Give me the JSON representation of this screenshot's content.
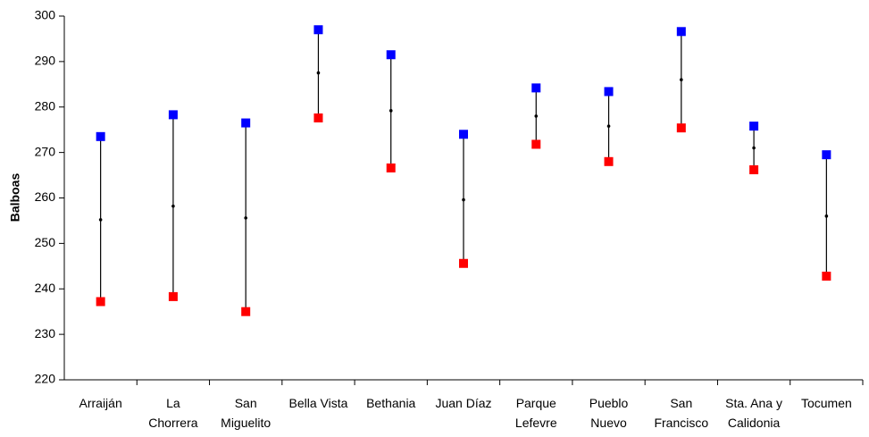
{
  "chart_data": {
    "type": "high-low-mean",
    "y_label": "Balboas",
    "categories": [
      "Arraiján",
      "La\nChorrera",
      "San\nMiguelito",
      "Bella Vista",
      "Bethania",
      "Juan Díaz",
      "Parque\nLefevre",
      "Pueblo\nNuevo",
      "San\nFrancisco",
      "Sta. Ana y\nCalidonia",
      "Tocumen"
    ],
    "series": [
      {
        "color": "#0000ff",
        "marker": "square",
        "values": [
          273.5,
          278.3,
          276.5,
          297,
          291.5,
          274,
          284.2,
          283.4,
          296.6,
          275.8,
          269.5
        ]
      },
      {
        "color": "#ff0000",
        "marker": "square",
        "values": [
          237.2,
          238.3,
          235,
          277.6,
          266.6,
          245.6,
          271.8,
          268,
          275.4,
          266.2,
          242.8
        ]
      },
      {
        "color": "#000000",
        "marker": "dot",
        "values": [
          255.2,
          258.2,
          255.6,
          287.5,
          279.2,
          259.6,
          278,
          275.8,
          286,
          271,
          256
        ]
      }
    ],
    "ylim": [
      220,
      300
    ],
    "yticks": [
      220,
      230,
      240,
      250,
      260,
      270,
      280,
      290,
      300
    ],
    "grid": false
  }
}
